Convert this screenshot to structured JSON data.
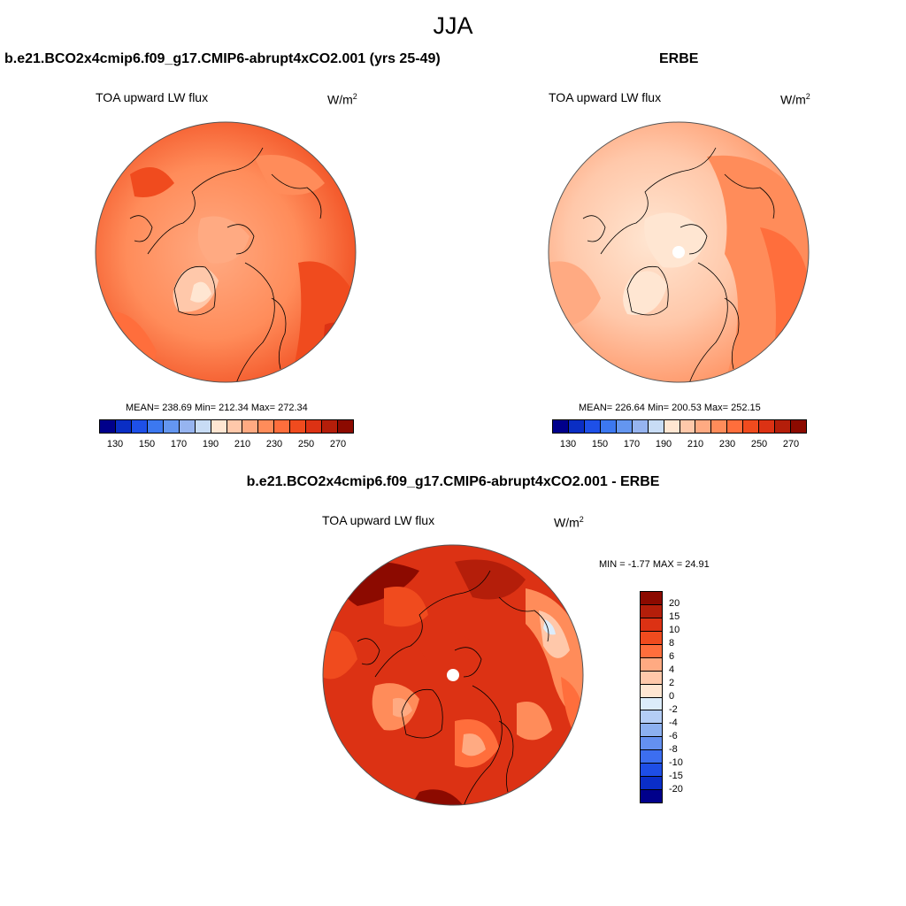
{
  "title": "JJA",
  "panels": [
    {
      "case_title": "b.e21.BCO2x4cmip6.f09_g17.CMIP6-abrupt4xCO2.001 (yrs 25-49)",
      "field_label": "TOA upward LW flux",
      "units": "W/m",
      "units_sup": "2",
      "stats": "MEAN= 238.69  Min= 212.34  Max= 272.34"
    },
    {
      "case_title": "ERBE",
      "field_label": "TOA upward LW flux",
      "units": "W/m",
      "units_sup": "2",
      "stats": "MEAN= 226.64  Min= 200.53  Max= 252.15"
    }
  ],
  "diff_panel": {
    "case_title": "b.e21.BCO2x4cmip6.f09_g17.CMIP6-abrupt4xCO2.001 - ERBE",
    "field_label": "TOA upward LW flux",
    "units": "W/m",
    "units_sup": "2",
    "stats": "MIN =  -1.77 MAX =  24.91"
  },
  "abs_colorbar": {
    "colors": [
      "#00008b",
      "#0a2ec4",
      "#1e50e8",
      "#3c78f0",
      "#6496f0",
      "#96b4f0",
      "#c8dcf5",
      "#ffe6d2",
      "#ffc8aa",
      "#ffaa82",
      "#ff8c5a",
      "#ff6e3c",
      "#f04b1e",
      "#dc3214",
      "#b41e0a",
      "#8c0a00"
    ],
    "ticks": [
      "130",
      "150",
      "170",
      "190",
      "210",
      "230",
      "250",
      "270"
    ]
  },
  "diff_colorbar": {
    "colors": [
      "#8c0a00",
      "#b41e0a",
      "#dc3214",
      "#f04b1e",
      "#ff6e3c",
      "#ffaa82",
      "#ffc8aa",
      "#ffe6d2",
      "#dcecfa",
      "#b4cdf5",
      "#8cb0f0",
      "#6490f0",
      "#3c6ef0",
      "#1e4ee6",
      "#0a2ec8",
      "#00008b"
    ],
    "ticks": [
      "20",
      "15",
      "10",
      "8",
      "6",
      "4",
      "2",
      "0",
      "-2",
      "-4",
      "-6",
      "-8",
      "-10",
      "-15",
      "-20"
    ]
  }
}
